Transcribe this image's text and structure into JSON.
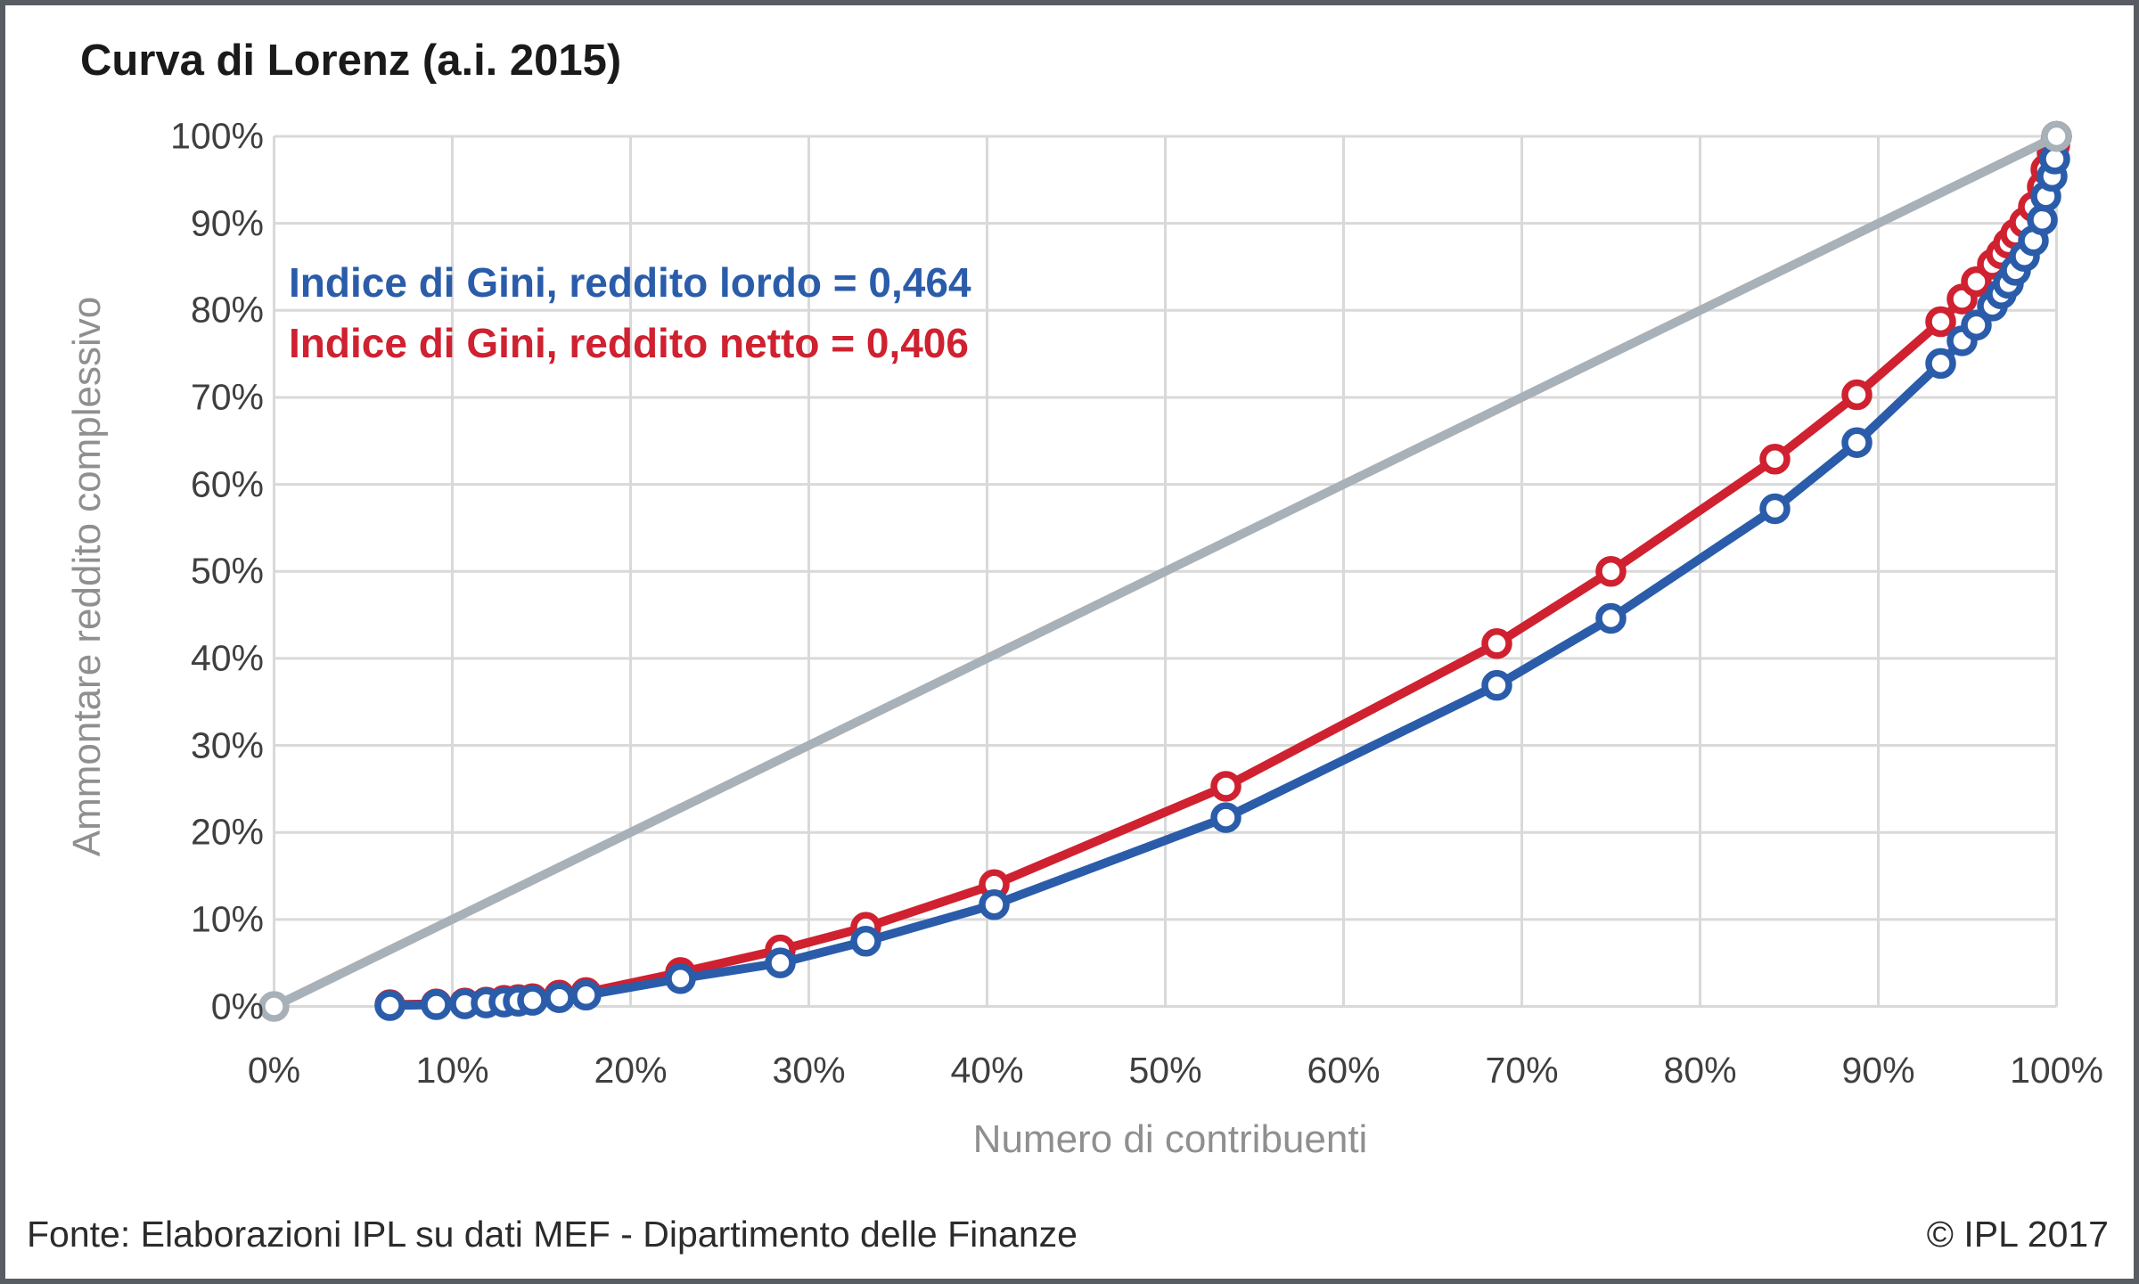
{
  "title": "Curva di Lorenz (a.i. 2015)",
  "annotations": {
    "gini_lordo": "Indice di Gini, reddito lordo = 0,464",
    "gini_netto": "Indice di Gini, reddito netto = 0,406"
  },
  "axes": {
    "x": {
      "label": "Numero di contribuenti",
      "ticks": [
        "0%",
        "10%",
        "20%",
        "30%",
        "40%",
        "50%",
        "60%",
        "70%",
        "80%",
        "90%",
        "100%"
      ]
    },
    "y": {
      "label": "Ammontare reddito complessivo",
      "ticks": [
        "0%",
        "10%",
        "20%",
        "30%",
        "40%",
        "50%",
        "60%",
        "70%",
        "80%",
        "90%",
        "100%"
      ]
    }
  },
  "footer": {
    "source": "Fonte: Elaborazioni IPL su dati MEF - Dipartimento delle Finanze",
    "copyright": "© IPL 2017"
  },
  "colors": {
    "lordo": "#2a5caa",
    "netto": "#cf2130",
    "equality": "#a8b0b8",
    "grid": "#d9d9d9",
    "marker_fill": "#ffffff"
  },
  "chart_data": {
    "type": "line",
    "title": "Curva di Lorenz (a.i. 2015)",
    "xlabel": "Numero di contribuenti",
    "ylabel": "Ammontare reddito complessivo",
    "xlim": [
      0,
      100
    ],
    "ylim": [
      0,
      100
    ],
    "grid": true,
    "legend_position": "none",
    "x": [
      6.5,
      9.1,
      10.7,
      11.9,
      12.9,
      13.7,
      14.5,
      16.0,
      17.5,
      22.8,
      28.4,
      33.2,
      40.4,
      53.4,
      68.6,
      75.0,
      84.2,
      88.8,
      93.5,
      94.7,
      95.5,
      96.4,
      96.9,
      97.3,
      97.7,
      98.2,
      98.7,
      99.2,
      99.4,
      99.75,
      99.9,
      100
    ],
    "series": [
      {
        "name": "reddito netto",
        "gini": "0,406",
        "color": "#cf2130",
        "values": [
          0.2,
          0.3,
          0.4,
          0.5,
          0.7,
          0.8,
          0.9,
          1.3,
          1.6,
          3.9,
          6.5,
          9.1,
          14.0,
          25.3,
          41.7,
          50.0,
          62.9,
          70.3,
          78.7,
          81.3,
          83.3,
          85.3,
          86.5,
          87.7,
          88.8,
          90.1,
          91.9,
          94.2,
          96.2,
          98.1,
          99.0,
          100
        ]
      },
      {
        "name": "reddito lordo",
        "gini": "0,464",
        "color": "#2a5caa",
        "values": [
          0.1,
          0.2,
          0.3,
          0.4,
          0.5,
          0.6,
          0.7,
          1.0,
          1.3,
          3.2,
          5.0,
          7.5,
          11.7,
          21.7,
          36.9,
          44.6,
          57.2,
          64.8,
          73.9,
          76.5,
          78.3,
          80.5,
          81.9,
          83.1,
          84.6,
          86.2,
          88.0,
          90.4,
          93.1,
          95.4,
          97.4,
          100
        ]
      }
    ],
    "equality_line": {
      "x": [
        0,
        100
      ],
      "y": [
        0,
        100
      ],
      "color": "#a8b0b8"
    }
  }
}
